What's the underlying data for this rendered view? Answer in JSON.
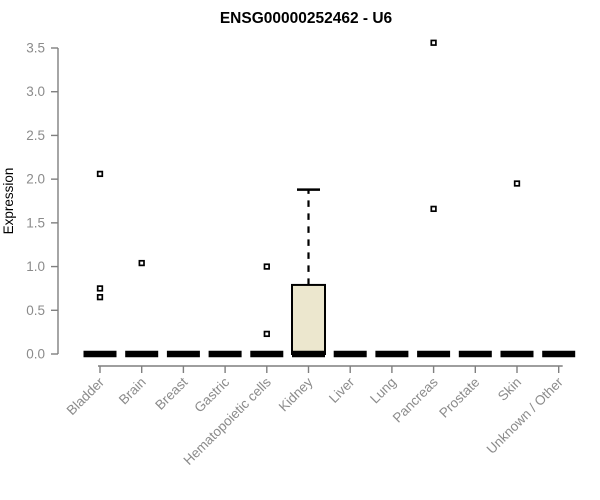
{
  "chart_data": {
    "type": "boxplot",
    "title": "ENSG00000252462 - U6",
    "ylabel": "Expression",
    "xlabel": "",
    "ylim": [
      0,
      3.5
    ],
    "yticks": [
      0.0,
      0.5,
      1.0,
      1.5,
      2.0,
      2.5,
      3.0,
      3.5
    ],
    "grid": false,
    "legend": "none",
    "categories": [
      "Bladder",
      "Brain",
      "Breast",
      "Gastric",
      "Hematopoietic cells",
      "Kidney",
      "Liver",
      "Lung",
      "Pancreas",
      "Prostate",
      "Skin",
      "Unknown / Other"
    ],
    "series": [
      {
        "category": "Bladder",
        "q1": 0,
        "median": 0,
        "q3": 0,
        "whisker_low": 0,
        "whisker_high": 0,
        "outliers": [
          2.06,
          0.75,
          0.65
        ]
      },
      {
        "category": "Brain",
        "q1": 0,
        "median": 0,
        "q3": 0,
        "whisker_low": 0,
        "whisker_high": 0,
        "outliers": [
          1.04
        ]
      },
      {
        "category": "Breast",
        "q1": 0,
        "median": 0,
        "q3": 0,
        "whisker_low": 0,
        "whisker_high": 0,
        "outliers": []
      },
      {
        "category": "Gastric",
        "q1": 0,
        "median": 0,
        "q3": 0,
        "whisker_low": 0,
        "whisker_high": 0,
        "outliers": []
      },
      {
        "category": "Hematopoietic cells",
        "q1": 0,
        "median": 0,
        "q3": 0,
        "whisker_low": 0,
        "whisker_high": 0,
        "outliers": [
          1.0,
          0.23
        ]
      },
      {
        "category": "Kidney",
        "q1": 0,
        "median": 0,
        "q3": 0.79,
        "whisker_low": 0,
        "whisker_high": 1.88,
        "outliers": []
      },
      {
        "category": "Liver",
        "q1": 0,
        "median": 0,
        "q3": 0,
        "whisker_low": 0,
        "whisker_high": 0,
        "outliers": []
      },
      {
        "category": "Lung",
        "q1": 0,
        "median": 0,
        "q3": 0,
        "whisker_low": 0,
        "whisker_high": 0,
        "outliers": []
      },
      {
        "category": "Pancreas",
        "q1": 0,
        "median": 0,
        "q3": 0,
        "whisker_low": 0,
        "whisker_high": 0,
        "outliers": [
          3.56,
          1.66
        ]
      },
      {
        "category": "Prostate",
        "q1": 0,
        "median": 0,
        "q3": 0,
        "whisker_low": 0,
        "whisker_high": 0,
        "outliers": []
      },
      {
        "category": "Skin",
        "q1": 0,
        "median": 0,
        "q3": 0,
        "whisker_low": 0,
        "whisker_high": 0,
        "outliers": [
          1.95
        ]
      },
      {
        "category": "Unknown / Other",
        "q1": 0,
        "median": 0,
        "q3": 0,
        "whisker_low": 0,
        "whisker_high": 0,
        "outliers": []
      }
    ],
    "colors": {
      "background": "#ffffff",
      "box_fill": "#ECE7CE",
      "box_border": "#000000",
      "median": "#000000",
      "whisker": "#000000",
      "outlier_fill": "#ffffff",
      "outlier_border": "#000000",
      "axis": "#7f7f7f",
      "tick_label": "#8b8b8b",
      "title": "#000000"
    }
  }
}
